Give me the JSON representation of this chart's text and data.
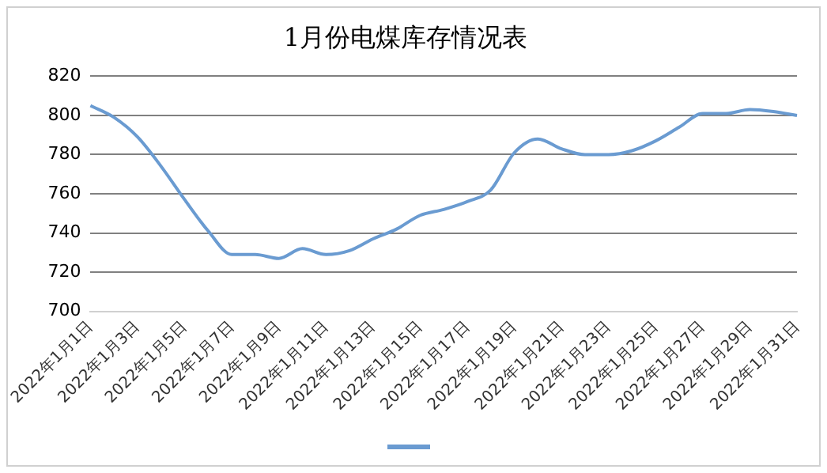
{
  "chart_data": {
    "type": "line",
    "title": "1月份电煤库存情况表",
    "categories": [
      "2022年1月1日",
      null,
      "2022年1月3日",
      null,
      "2022年1月5日",
      null,
      "2022年1月7日",
      null,
      "2022年1月9日",
      null,
      "2022年1月11日",
      null,
      "2022年1月13日",
      null,
      "2022年1月15日",
      null,
      "2022年1月17日",
      null,
      "2022年1月19日",
      null,
      "2022年1月21日",
      null,
      "2022年1月23日",
      null,
      "2022年1月25日",
      null,
      "2022年1月27日",
      null,
      "2022年1月29日",
      null,
      "2022年1月31日"
    ],
    "series": [
      {
        "color": "#6a9bd1",
        "values": [
          805,
          799,
          789,
          774,
          757,
          741,
          729,
          729,
          727,
          732,
          729,
          731,
          737,
          742,
          749,
          752,
          756,
          762,
          781,
          788,
          783,
          780,
          780,
          782,
          787,
          794,
          801,
          801,
          803,
          802,
          800
        ]
      }
    ],
    "ylim": [
      700,
      820
    ],
    "yticks": [
      700,
      720,
      740,
      760,
      780,
      800,
      820
    ],
    "grid": "y",
    "marker": "none",
    "line_style": "solid"
  }
}
